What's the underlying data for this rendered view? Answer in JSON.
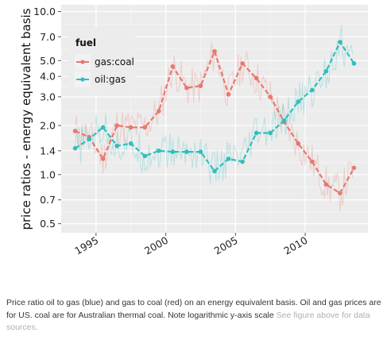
{
  "chart_data": {
    "type": "line",
    "title": "",
    "xlabel": "",
    "ylabel": "price ratios - energy equivalent basis",
    "x_range": [
      1992.5,
      2014.5
    ],
    "ylim": [
      0.44,
      11.0
    ],
    "y_scale": "log",
    "x_ticks": [
      1995,
      2000,
      2005,
      2010
    ],
    "x_tick_labels": [
      "1995",
      "2000",
      "2005",
      "2010"
    ],
    "y_ticks": [
      0.5,
      0.7,
      1.0,
      1.4,
      2.0,
      3.0,
      4.0,
      5.0,
      7.0,
      10.0
    ],
    "y_tick_labels": [
      "0.5",
      "0.7",
      "1.0",
      "1.4",
      "2.0",
      "3.0",
      "4.0",
      "5.0",
      "7.0",
      "10.0"
    ],
    "grid": true,
    "legend": {
      "title": "fuel",
      "position": "top-left"
    },
    "series": [
      {
        "name": "gas:coal",
        "color": "#e8786e",
        "x": [
          1993.5,
          1994.5,
          1995.5,
          1996.5,
          1997.5,
          1998.5,
          1999.5,
          2000.5,
          2001.5,
          2002.5,
          2003.5,
          2004.5,
          2005.5,
          2006.5,
          2007.5,
          2008.5,
          2009.5,
          2010.5,
          2011.5,
          2012.5,
          2013.5
        ],
        "values": [
          1.85,
          1.7,
          1.25,
          2.0,
          1.95,
          1.95,
          2.45,
          4.6,
          3.4,
          3.5,
          5.7,
          3.1,
          4.8,
          3.9,
          3.0,
          2.1,
          1.55,
          1.2,
          0.87,
          0.77,
          1.1
        ]
      },
      {
        "name": "oil:gas",
        "color": "#2ebfbf",
        "x": [
          1993.5,
          1994.5,
          1995.5,
          1996.5,
          1997.5,
          1998.5,
          1999.5,
          2000.5,
          2001.5,
          2002.5,
          2003.5,
          2004.5,
          2005.5,
          2006.5,
          2007.5,
          2008.5,
          2009.5,
          2010.5,
          2011.5,
          2012.5,
          2013.5
        ],
        "values": [
          1.45,
          1.65,
          1.95,
          1.5,
          1.55,
          1.3,
          1.4,
          1.38,
          1.38,
          1.38,
          1.05,
          1.25,
          1.2,
          1.8,
          1.8,
          2.15,
          2.8,
          3.3,
          4.3,
          6.5,
          4.8
        ]
      }
    ]
  },
  "caption": {
    "text": "Price ratio oil to gas (blue) and gas to coal (red) on an energy equivalent basis. Oil and gas prices are for US. coal are for Australian thermal coal. Note logarithmic y-axis scale",
    "link": "See figure above for data sources."
  }
}
